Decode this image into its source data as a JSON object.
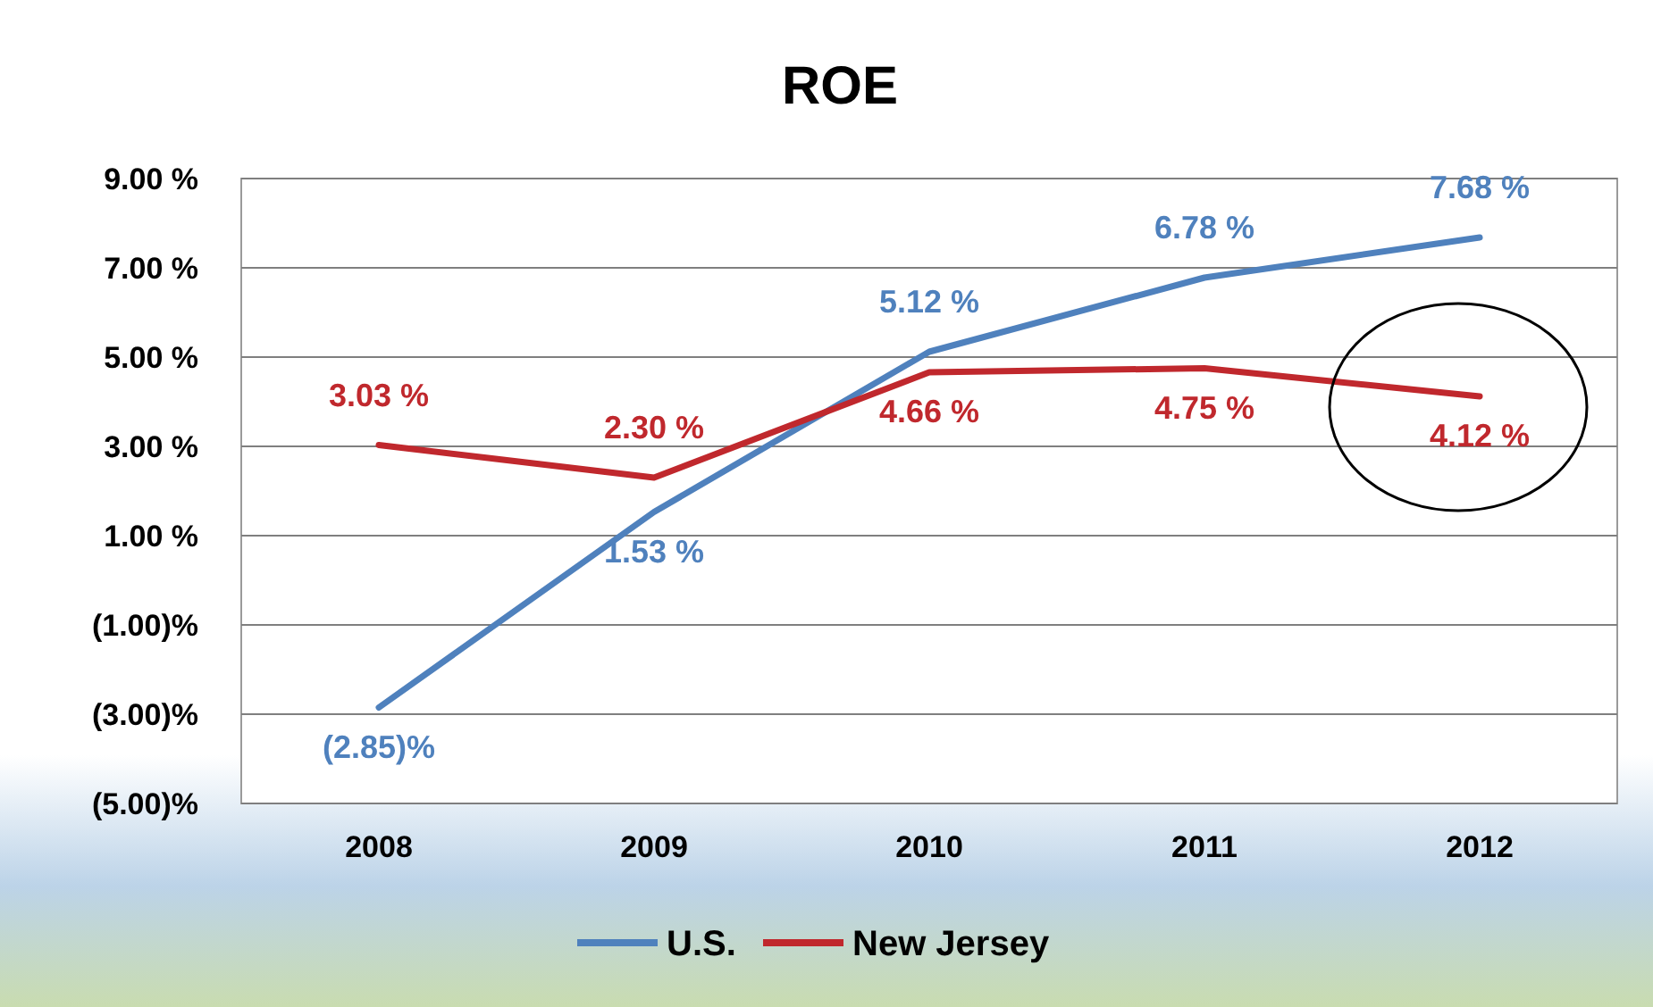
{
  "chart_data": {
    "type": "line",
    "title": "ROE",
    "categories": [
      "2008",
      "2009",
      "2010",
      "2011",
      "2012"
    ],
    "series": [
      {
        "name": "U.S.",
        "color": "#4f81bd",
        "values": [
          -2.85,
          1.53,
          5.12,
          6.78,
          7.68
        ],
        "value_labels": [
          "(2.85)%",
          "1.53 %",
          "5.12 %",
          "6.78 %",
          "7.68 %"
        ]
      },
      {
        "name": "New Jersey",
        "color": "#c0282d",
        "values": [
          3.03,
          2.3,
          4.66,
          4.75,
          4.12
        ],
        "value_labels": [
          "3.03 %",
          "2.30 %",
          "4.66 %",
          "4.75 %",
          "4.12 %"
        ]
      }
    ],
    "ylim": [
      -5,
      9
    ],
    "yticks": [
      {
        "value": -5,
        "label": "(5.00)%"
      },
      {
        "value": -3,
        "label": "(3.00)%"
      },
      {
        "value": -1,
        "label": "(1.00)%"
      },
      {
        "value": 1,
        "label": "1.00 %"
      },
      {
        "value": 3,
        "label": "3.00 %"
      },
      {
        "value": 5,
        "label": "5.00 %"
      },
      {
        "value": 7,
        "label": "7.00 %"
      },
      {
        "value": 9,
        "label": "9.00 %"
      }
    ],
    "grid": "y",
    "legend": "bottom",
    "marker": "none",
    "line_style": "solid"
  }
}
